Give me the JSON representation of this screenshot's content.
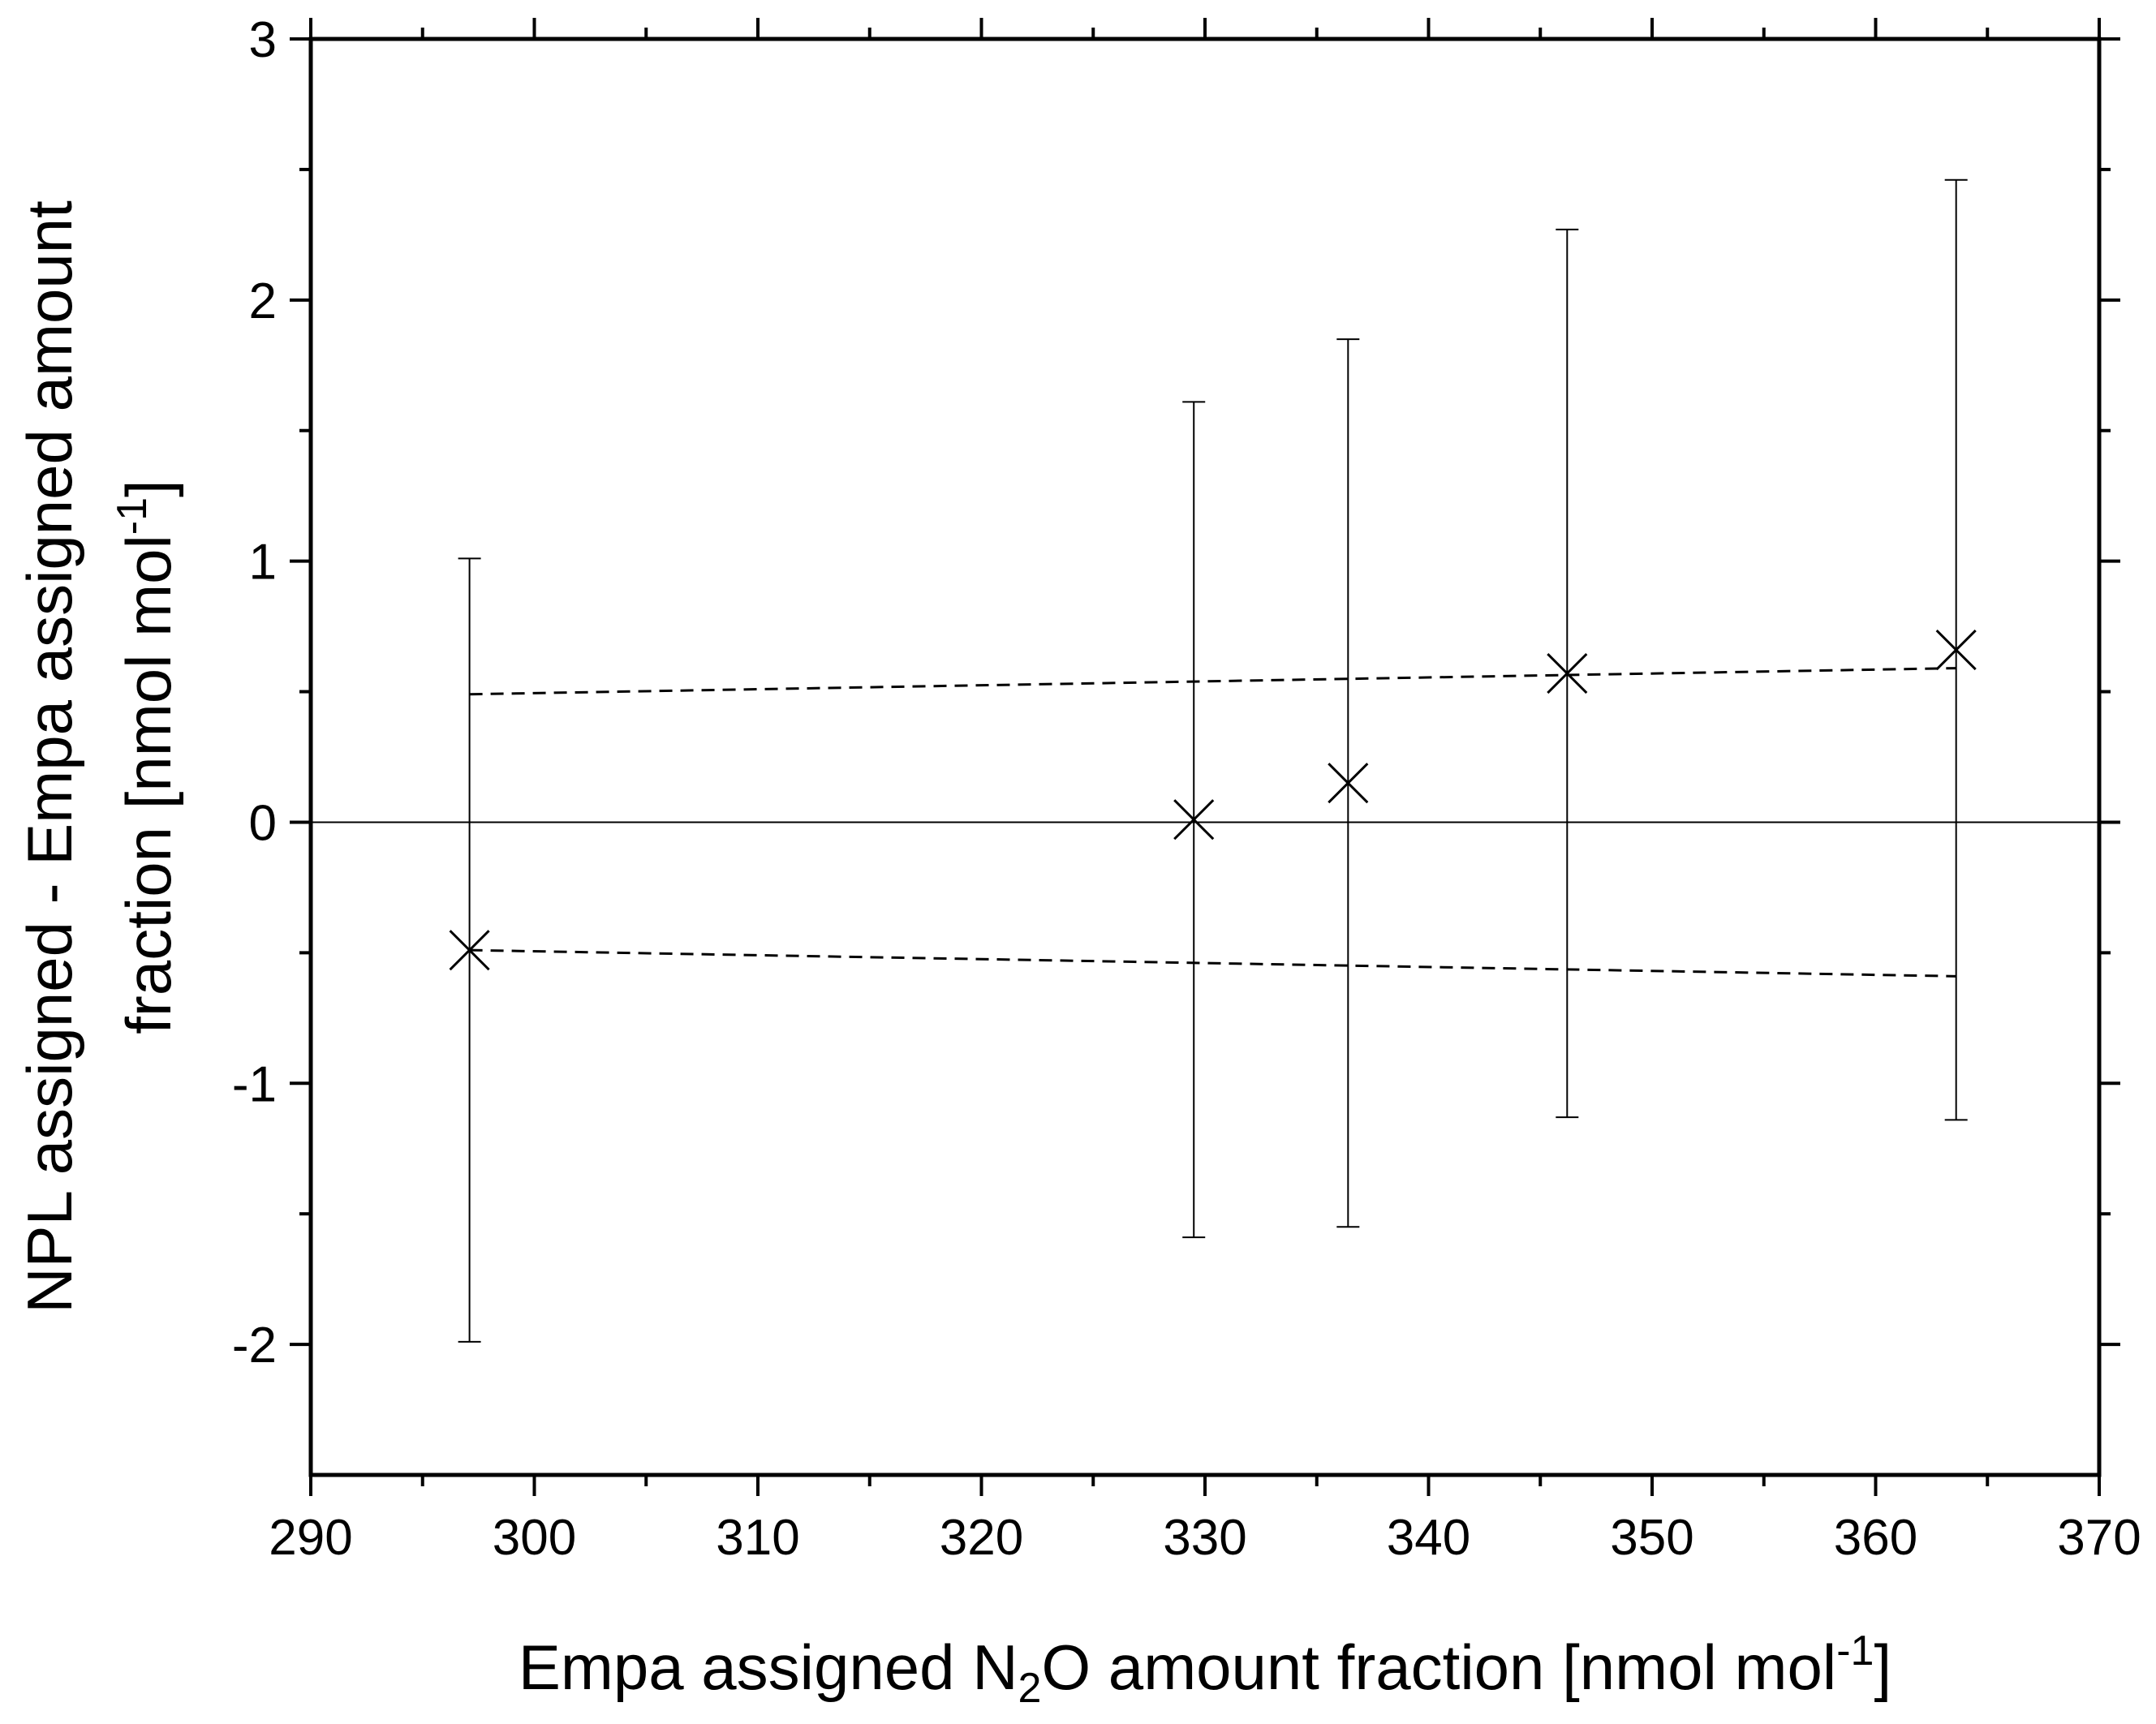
{
  "chart_data": {
    "type": "scatter",
    "xlabel": {
      "parts": [
        {
          "text": "Empa assigned N"
        },
        {
          "text": "2",
          "sub": true
        },
        {
          "text": "O amount fraction [nmol mol"
        },
        {
          "text": "-1",
          "sup": true
        },
        {
          "text": "]"
        }
      ]
    },
    "ylabel": {
      "line1": "NPL assigned - Empa assigned amount",
      "line2": {
        "parts": [
          {
            "text": "fraction [nmol mol"
          },
          {
            "text": "-1",
            "sup": true
          },
          {
            "text": "]"
          }
        ]
      }
    },
    "xlim": [
      290,
      370
    ],
    "ylim": [
      -2.5,
      3
    ],
    "xticks": [
      290,
      300,
      310,
      320,
      330,
      340,
      350,
      360,
      370
    ],
    "xtick_labels": [
      "290",
      "300",
      "310",
      "320",
      "330",
      "340",
      "350",
      "360",
      "370"
    ],
    "yticks": [
      -2,
      -1,
      0,
      1,
      2,
      3
    ],
    "ytick_labels": [
      "-2",
      "-1",
      "0",
      "1",
      "2",
      "3"
    ],
    "grid": false,
    "zero_line": 0,
    "series": [
      {
        "marker": "x",
        "x": [
          297.1,
          329.5,
          336.4,
          346.2,
          363.6
        ],
        "y": [
          -0.49,
          0.01,
          0.15,
          0.57,
          0.66
        ],
        "yerr_low": [
          -1.99,
          -1.59,
          -1.55,
          -1.13,
          -1.14
        ],
        "yerr_high": [
          1.01,
          1.61,
          1.85,
          2.27,
          2.46
        ]
      }
    ],
    "bounds": [
      {
        "style": "dashed",
        "x": [
          297.1,
          363.6
        ],
        "y": [
          0.49,
          0.59
        ]
      },
      {
        "style": "dashed",
        "x": [
          297.1,
          363.6
        ],
        "y": [
          -0.49,
          -0.59
        ]
      }
    ]
  }
}
